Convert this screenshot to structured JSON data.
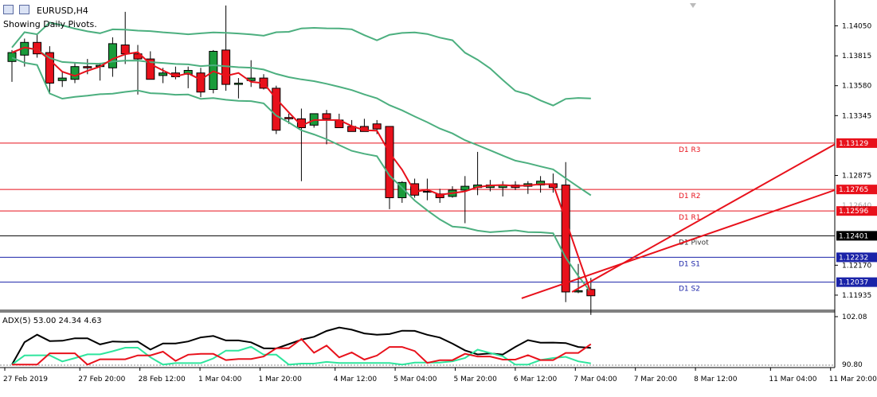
{
  "header": {
    "symbol": "EURUSD,H4",
    "subtitle": "Showing Daily Pivots."
  },
  "colors": {
    "bull": "#1a9b3a",
    "bear": "#e8111b",
    "ma": "#e8111b",
    "bands": "#4caf7f",
    "pivot": "#000000",
    "resistance": "#e8111b",
    "support": "#1a23a8",
    "adx_main": "#000000",
    "adx_plus": "#2ee59d",
    "adx_minus": "#e8111b",
    "trend": "#e8111b"
  },
  "chart_data": [
    {
      "type": "candlestick",
      "title": "EURUSD,H4",
      "subtitle": "Showing Daily Pivots.",
      "ylim": [
        1.11816,
        1.14253
      ],
      "y_ticks": [
        1.1405,
        1.13815,
        1.1358,
        1.13345,
        1.12875,
        1.1217,
        1.11935
      ],
      "y_tick_labels": [
        "1.14050",
        "1.13815",
        "1.13580",
        "1.13345",
        "1.12875",
        "1.12170",
        "1.11935"
      ],
      "x_tick_labels": [
        {
          "label": "27 Feb 2019",
          "bar": 0
        },
        {
          "label": "27 Feb 20:00",
          "bar": 5
        },
        {
          "label": "28 Feb 12:00",
          "bar": 9
        },
        {
          "label": "1 Mar 04:00",
          "bar": 13
        },
        {
          "label": "1 Mar 20:00",
          "bar": 17
        },
        {
          "label": "4 Mar 12:00",
          "bar": 22
        },
        {
          "label": "5 Mar 04:00",
          "bar": 26
        },
        {
          "label": "5 Mar 20:00",
          "bar": 30
        },
        {
          "label": "6 Mar 12:00",
          "bar": 34
        },
        {
          "label": "7 Mar 04:00",
          "bar": 38
        },
        {
          "label": "7 Mar 20:00",
          "bar": 42
        },
        {
          "label": "8 Mar 12:00",
          "bar": 46
        },
        {
          "label": "11 Mar 04:00",
          "bar": 51
        },
        {
          "label": "11 Mar 20:00",
          "bar": 55
        }
      ],
      "candles": [
        {
          "o": 1.1377,
          "h": 1.1386,
          "l": 1.1361,
          "c": 1.1384
        },
        {
          "o": 1.1382,
          "h": 1.1395,
          "l": 1.1373,
          "c": 1.1392
        },
        {
          "o": 1.1392,
          "h": 1.1399,
          "l": 1.138,
          "c": 1.1383
        },
        {
          "o": 1.1384,
          "h": 1.1389,
          "l": 1.1352,
          "c": 1.136
        },
        {
          "o": 1.1362,
          "h": 1.1369,
          "l": 1.1357,
          "c": 1.1364
        },
        {
          "o": 1.1363,
          "h": 1.1376,
          "l": 1.136,
          "c": 1.1373
        },
        {
          "o": 1.1373,
          "h": 1.1379,
          "l": 1.1367,
          "c": 1.1372
        },
        {
          "o": 1.1373,
          "h": 1.1376,
          "l": 1.1362,
          "c": 1.1374
        },
        {
          "o": 1.1372,
          "h": 1.1396,
          "l": 1.1365,
          "c": 1.1391
        },
        {
          "o": 1.139,
          "h": 1.1416,
          "l": 1.1375,
          "c": 1.1383
        },
        {
          "o": 1.1383,
          "h": 1.139,
          "l": 1.1351,
          "c": 1.1379
        },
        {
          "o": 1.1379,
          "h": 1.1385,
          "l": 1.1363,
          "c": 1.1363
        },
        {
          "o": 1.1366,
          "h": 1.1372,
          "l": 1.136,
          "c": 1.1368
        },
        {
          "o": 1.1368,
          "h": 1.1373,
          "l": 1.1363,
          "c": 1.1365
        },
        {
          "o": 1.1367,
          "h": 1.1373,
          "l": 1.1356,
          "c": 1.137
        },
        {
          "o": 1.1368,
          "h": 1.1372,
          "l": 1.1349,
          "c": 1.1353
        },
        {
          "o": 1.1355,
          "h": 1.1386,
          "l": 1.1352,
          "c": 1.1385
        },
        {
          "o": 1.1386,
          "h": 1.1421,
          "l": 1.1354,
          "c": 1.1359
        },
        {
          "o": 1.1359,
          "h": 1.1364,
          "l": 1.1348,
          "c": 1.136
        },
        {
          "o": 1.1362,
          "h": 1.1378,
          "l": 1.1357,
          "c": 1.1364
        },
        {
          "o": 1.1364,
          "h": 1.1367,
          "l": 1.1355,
          "c": 1.1356
        },
        {
          "o": 1.1356,
          "h": 1.1358,
          "l": 1.132,
          "c": 1.1323
        },
        {
          "o": 1.1333,
          "h": 1.1336,
          "l": 1.1328,
          "c": 1.1332
        },
        {
          "o": 1.1332,
          "h": 1.134,
          "l": 1.1283,
          "c": 1.1325
        },
        {
          "o": 1.1327,
          "h": 1.1336,
          "l": 1.1325,
          "c": 1.1336
        },
        {
          "o": 1.1336,
          "h": 1.1339,
          "l": 1.1312,
          "c": 1.1332
        },
        {
          "o": 1.1331,
          "h": 1.1336,
          "l": 1.1325,
          "c": 1.1325
        },
        {
          "o": 1.1326,
          "h": 1.1331,
          "l": 1.1322,
          "c": 1.1322
        },
        {
          "o": 1.1326,
          "h": 1.1332,
          "l": 1.1323,
          "c": 1.1322
        },
        {
          "o": 1.1328,
          "h": 1.1331,
          "l": 1.132,
          "c": 1.1324
        },
        {
          "o": 1.1326,
          "h": 1.1326,
          "l": 1.1261,
          "c": 1.127
        },
        {
          "o": 1.127,
          "h": 1.1283,
          "l": 1.1266,
          "c": 1.1282
        },
        {
          "o": 1.1281,
          "h": 1.1285,
          "l": 1.127,
          "c": 1.1272
        },
        {
          "o": 1.1275,
          "h": 1.1285,
          "l": 1.1268,
          "c": 1.1275
        },
        {
          "o": 1.1273,
          "h": 1.1277,
          "l": 1.1266,
          "c": 1.127
        },
        {
          "o": 1.1271,
          "h": 1.1279,
          "l": 1.127,
          "c": 1.1276
        },
        {
          "o": 1.1276,
          "h": 1.1287,
          "l": 1.125,
          "c": 1.1279
        },
        {
          "o": 1.1278,
          "h": 1.1306,
          "l": 1.1272,
          "c": 1.128
        },
        {
          "o": 1.1278,
          "h": 1.1284,
          "l": 1.1275,
          "c": 1.128
        },
        {
          "o": 1.1278,
          "h": 1.1283,
          "l": 1.1271,
          "c": 1.128
        },
        {
          "o": 1.128,
          "h": 1.1283,
          "l": 1.1276,
          "c": 1.1278
        },
        {
          "o": 1.1279,
          "h": 1.1283,
          "l": 1.1273,
          "c": 1.1281
        },
        {
          "o": 1.128,
          "h": 1.1287,
          "l": 1.1274,
          "c": 1.1283
        },
        {
          "o": 1.1281,
          "h": 1.1289,
          "l": 1.1274,
          "c": 1.1278
        },
        {
          "o": 1.128,
          "h": 1.1298,
          "l": 1.1188,
          "c": 1.1196
        },
        {
          "o": 1.1196,
          "h": 1.1218,
          "l": 1.1195,
          "c": 1.1197
        },
        {
          "o": 1.1198,
          "h": 1.1207,
          "l": 1.1178,
          "c": 1.1193
        }
      ]
    },
    {
      "type": "line",
      "title": "ADX(5) 53.00 24.34 4.63",
      "ylim": [
        90.8,
        102.08
      ],
      "y_tick_labels": [
        "102.08",
        "90.80"
      ],
      "series": []
    }
  ],
  "overlays": {
    "ma_label": "",
    "pivots": [
      {
        "name": "D1 R3",
        "value": 1.13129,
        "label": "1.13129",
        "kind": "resistance"
      },
      {
        "name": "D1 R2",
        "value": 1.12765,
        "label": "1.12765",
        "kind": "resistance"
      },
      {
        "name": "D1 R1",
        "value": 1.12596,
        "label": "1.12596",
        "kind": "resistance"
      },
      {
        "name": "D1 Pivot",
        "value": 1.12401,
        "label": "1.12401",
        "kind": "pivot"
      },
      {
        "name": "D1 S1",
        "value": 1.12232,
        "label": "1.12232",
        "kind": "support"
      },
      {
        "name": "D1 S2",
        "value": 1.12037,
        "label": "1.12037",
        "kind": "support"
      }
    ],
    "partial_tick_label": "1.12640"
  }
}
